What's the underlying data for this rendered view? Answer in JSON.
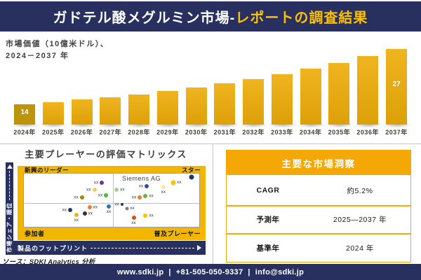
{
  "header": {
    "title_white": "ガドテル酸メグルミン市場-",
    "title_yellow": "レポートの調査結果"
  },
  "bar_section": {
    "subtitle_line1": "市場価値（10億米ドル）、",
    "subtitle_line2": "2024－2037 年"
  },
  "chart_data": [
    {
      "type": "bar",
      "title": "市場価値（10億米ドル）、2024－2037 年",
      "categories": [
        "2024年",
        "2025年",
        "2026年",
        "2027年",
        "2028年",
        "2029年",
        "2030年",
        "2031年",
        "2032年",
        "2033年",
        "2034年",
        "2035年",
        "2036年",
        "2037年"
      ],
      "values": [
        14,
        14.7,
        15.5,
        16.3,
        17.1,
        18.0,
        19.0,
        20.0,
        21.0,
        22.1,
        23.2,
        24.4,
        25.7,
        27
      ],
      "value_labels": {
        "0": "14",
        "13": "27"
      },
      "xlabel": "",
      "ylabel": "市場価値（10億米ドル）",
      "grid": false,
      "legend": "none",
      "bar_color": "#E3AA10",
      "first_bar_color": "#BD9406"
    },
    {
      "type": "scatter",
      "title": "主要プレーヤーの評価マトリックス",
      "xlabel": "製品のフットプリント",
      "ylabel": "市場シェア・順位",
      "quadrants": {
        "top_left": "新興のリーダー",
        "top_right": "スター",
        "bottom_left": "参加者",
        "bottom_right": "普及プレーヤー"
      },
      "highlight_company": "Siemens AG",
      "points": [
        {
          "x": 44.5,
          "y": 16.7,
          "color": "#7030A0",
          "size": 6,
          "label": "xx",
          "side": "left"
        },
        {
          "x": 40.2,
          "y": 30.8,
          "color": "#E8CE6B",
          "size": 6,
          "label": "xx",
          "side": "left"
        },
        {
          "x": 33.1,
          "y": 44.9,
          "color": "#A38A0E",
          "size": 6,
          "label": "xx",
          "side": "left"
        },
        {
          "x": 46.9,
          "y": 41.0,
          "color": "#54B345",
          "size": 6,
          "label": "xx",
          "side": "left"
        },
        {
          "x": 37.4,
          "y": 62.8,
          "color": "#ED7D31",
          "size": 6,
          "label": "xx",
          "side": "right"
        },
        {
          "x": 48.4,
          "y": 61.5,
          "color": "#2E75B6",
          "size": 6,
          "label": "xx",
          "side": "below"
        },
        {
          "x": 26.4,
          "y": 67.9,
          "color": "#1F3864",
          "size": 6,
          "label": "xx",
          "side": "left"
        },
        {
          "x": 34.6,
          "y": 75.6,
          "color": "#333333",
          "size": 6,
          "label": "xx",
          "side": "right"
        },
        {
          "x": 29.9,
          "y": 78.2,
          "color": "#F2B01E",
          "size": 6,
          "label": "xx",
          "side": "below"
        },
        {
          "x": 52.8,
          "y": 30.8,
          "color": "#A9D18E",
          "size": 6,
          "label": "xx",
          "side": "right"
        },
        {
          "x": 70.1,
          "y": 23.1,
          "color": "#2E5597",
          "size": 6,
          "label": "xx",
          "side": "left"
        },
        {
          "x": 79.5,
          "y": 25.6,
          "color": "#FFE699",
          "size": 6,
          "label": "xx",
          "side": "below"
        },
        {
          "x": 85.0,
          "y": 16.7,
          "color": "#FFC000",
          "size": 7,
          "label": "xx",
          "side": "right"
        },
        {
          "x": 95.7,
          "y": 6.4,
          "color": "#1F3864",
          "size": 7,
          "label": "",
          "side": "none"
        },
        {
          "x": 66.1,
          "y": 44.9,
          "color": "#ED7D31",
          "size": 6,
          "label": "xx",
          "side": "left"
        },
        {
          "x": 69.3,
          "y": 42.3,
          "color": "#70AD47",
          "size": 6,
          "label": "xx",
          "side": "right"
        },
        {
          "x": 55.9,
          "y": 57.7,
          "color": "#1F3864",
          "size": 4,
          "label": "xx",
          "side": "left"
        },
        {
          "x": 58.7,
          "y": 65.4,
          "color": "#808080",
          "size": 5,
          "label": "xx",
          "side": "right"
        },
        {
          "x": 62.6,
          "y": 83.3,
          "color": "#C55A11",
          "size": 6,
          "label": "xx",
          "side": "below"
        },
        {
          "x": 69.3,
          "y": 79.5,
          "color": "#FFC000",
          "size": 6,
          "label": "xx",
          "side": "right"
        }
      ]
    }
  ],
  "insights": {
    "header": "主要な市場洞察",
    "rows": [
      {
        "label": "CAGR",
        "value": "約5.2%"
      },
      {
        "label": "予測年",
        "value": "2025—2037 年"
      },
      {
        "label": "基準年",
        "value": "2024 年"
      }
    ]
  },
  "source": "ソース：SDKI Analytics 分析",
  "footer": {
    "website": "www.sdki.jp",
    "separator": "|",
    "phone": "+81-505-050-9337",
    "email": "info@sdki.jp"
  },
  "colors": {
    "navy": "#27305E",
    "accent_yellow": "#FFC000",
    "matrix_gold": "#F2B600",
    "table_gold": "#F5A805",
    "bar_gold": "#E3AA10",
    "first_bar_gold": "#BD9406"
  }
}
